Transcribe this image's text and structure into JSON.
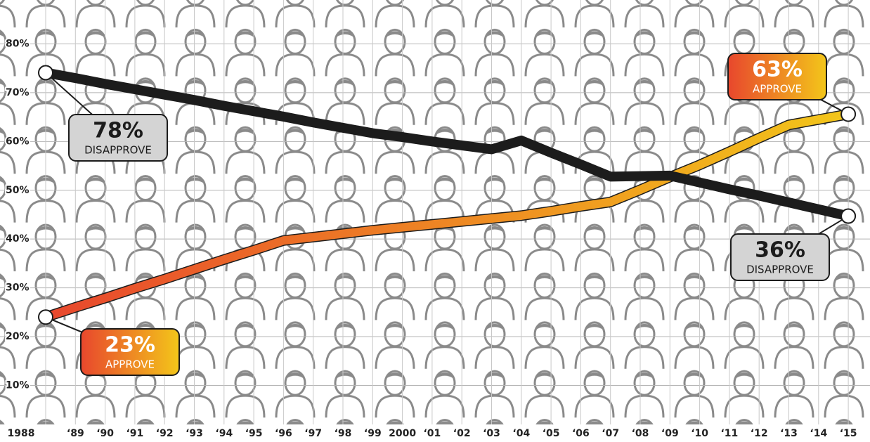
{
  "chart_data": {
    "type": "line",
    "categories": [
      "1988",
      "‘89",
      "‘90",
      "‘91",
      "‘92",
      "‘93",
      "‘94",
      "‘95",
      "‘96",
      "‘97",
      "‘98",
      "‘99",
      "2000",
      "‘01",
      "‘02",
      "‘03",
      "‘04",
      "‘05",
      "‘06",
      "‘07",
      "‘08",
      "‘09",
      "‘10",
      "‘11",
      "‘12",
      "‘13",
      "‘14",
      "‘15"
    ],
    "series": [
      {
        "name": "APPROVE",
        "color": "#e8472d",
        "gradient_to": "#f3c61a",
        "values": [
          24.0,
          26.0,
          27.9,
          29.9,
          31.8,
          33.8,
          35.8,
          37.7,
          39.7,
          40.4,
          41.1,
          41.8,
          42.4,
          43.0,
          43.6,
          44.2,
          44.8,
          45.7,
          46.7,
          47.6,
          50.1,
          52.7,
          55.2,
          57.9,
          60.7,
          63.4,
          64.5,
          65.6
        ]
      },
      {
        "name": "DISAPPROVE",
        "color": "#1c1c1c",
        "values": [
          74.1,
          73.0,
          71.8,
          70.7,
          69.6,
          68.5,
          67.3,
          66.2,
          65.1,
          63.9,
          62.8,
          61.7,
          60.9,
          60.0,
          59.2,
          58.4,
          60.2,
          57.7,
          55.3,
          52.8,
          52.9,
          53.0,
          51.6,
          50.2,
          48.9,
          47.5,
          46.1,
          44.7
        ]
      }
    ],
    "annotations": [
      {
        "text": "78%",
        "label": "DISAPPROVE"
      },
      {
        "text": "36%",
        "label": "DISAPPROVE"
      },
      {
        "text": "23%",
        "label": "APPROVE"
      },
      {
        "text": "63%",
        "label": "APPROVE"
      }
    ],
    "ylim": [
      2,
      89
    ],
    "yticks": [
      {
        "value": 10,
        "label": "10%"
      },
      {
        "value": 20,
        "label": "20%"
      },
      {
        "value": 30,
        "label": "30%"
      },
      {
        "value": 40,
        "label": "40%"
      },
      {
        "value": 50,
        "label": "50%"
      },
      {
        "value": 60,
        "label": "60%"
      },
      {
        "value": 70,
        "label": "70%"
      },
      {
        "value": 80,
        "label": "80%"
      }
    ],
    "grid": true
  }
}
